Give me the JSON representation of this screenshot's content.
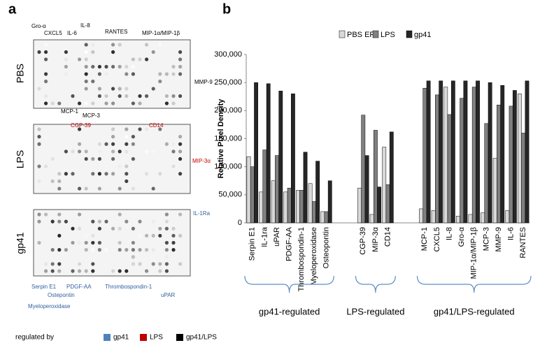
{
  "panel_labels": [
    "a",
    "b"
  ],
  "blot": {
    "membranes": [
      "PBS",
      "LPS",
      "gp41"
    ],
    "annotations": [
      "Gro-α",
      "CXCL5",
      "IL-8",
      "IL-6",
      "RANTES",
      "MIP-1α/MIP-1β",
      "MMP-9",
      "MCP-1",
      "MCP-3",
      "CGP-39",
      "CD14",
      "MIP-3α",
      "IL-1Ra",
      "Serpin E1",
      "Ostepontin",
      "PDGF-AA",
      "Thrombospondin-1",
      "uPAR",
      "Myeloperoxidase"
    ],
    "legend": {
      "title": "regulated by",
      "items": [
        {
          "label": "gp41",
          "color": "#4f81bd"
        },
        {
          "label": "LPS",
          "color": "#c00000"
        },
        {
          "label": "gp41/LPS",
          "color": "#000000"
        }
      ]
    }
  },
  "chart_data": {
    "type": "bar",
    "ylabel": "Relative Pixel Density",
    "categories": [
      "Serpin E1",
      "IL-1ra",
      "uPAR",
      "PDGF-AA",
      "Thrombospondin-1",
      "Myeloperoxidase",
      "Osteopontin",
      null,
      null,
      "CGP-39",
      "MIP-3α",
      "CD14",
      null,
      null,
      "MCP-1",
      "CXCL5",
      "IL-8",
      "Gro-α",
      "MIP-1α/MIP-1β",
      "MCP-3",
      "MMP-9",
      "IL-6",
      "RANTES"
    ],
    "series": [
      {
        "name": "PBS EF",
        "color": "#d9d9d9",
        "values": [
          118000,
          55000,
          75000,
          55000,
          58000,
          70000,
          20000,
          null,
          null,
          62000,
          15000,
          135000,
          null,
          null,
          25000,
          22000,
          242000,
          12000,
          15000,
          18000,
          115000,
          22000,
          230000
        ]
      },
      {
        "name": "LPS",
        "color": "#808080",
        "values": [
          100000,
          130000,
          120000,
          62000,
          58000,
          38000,
          20000,
          null,
          null,
          192000,
          165000,
          68000,
          null,
          null,
          240000,
          228000,
          193000,
          222000,
          242000,
          177000,
          210000,
          208000,
          160000
        ]
      },
      {
        "name": "gp41",
        "color": "#262626",
        "values": [
          250000,
          248000,
          235000,
          230000,
          126000,
          110000,
          75000,
          null,
          null,
          120000,
          64000,
          162000,
          null,
          null,
          253000,
          253000,
          253000,
          253000,
          253000,
          250000,
          245000,
          236000,
          253000
        ]
      }
    ],
    "group_labels": [
      "gp41-regulated",
      "LPS-regulated",
      "gp41/LPS-regulated"
    ],
    "ylim": [
      0,
      300000
    ],
    "yticks": [
      {
        "value": 0,
        "label": "0"
      },
      {
        "value": 50000,
        "label": "50,000"
      },
      {
        "value": 100000,
        "label": "100,000"
      },
      {
        "value": 150000,
        "label": "150,000"
      },
      {
        "value": 200000,
        "label": "200,000"
      },
      {
        "value": 250000,
        "label": "250,000"
      },
      {
        "value": 300000,
        "label": "300,000"
      }
    ],
    "legend": "top"
  }
}
